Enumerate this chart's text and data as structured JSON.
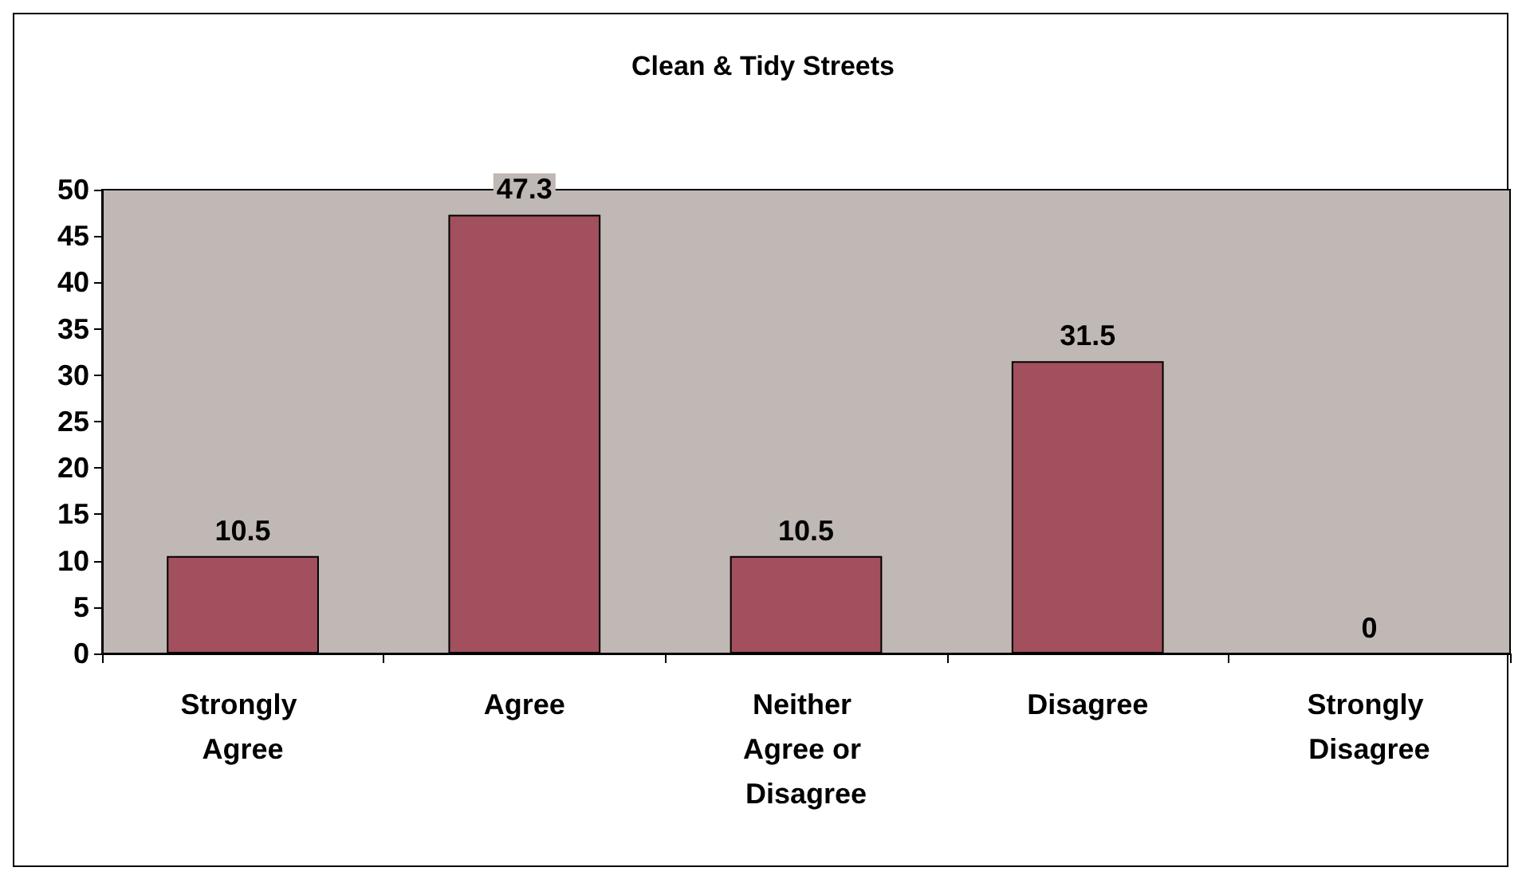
{
  "chart_data": {
    "type": "bar",
    "title": "Clean & Tidy Streets",
    "categories": [
      "Strongly Agree",
      "Agree",
      "Neither Agree or Disagree",
      "Disagree",
      "Strongly Disagree"
    ],
    "values": [
      10.5,
      47.3,
      10.5,
      31.5,
      0
    ],
    "color": "#a24f5e",
    "ylim": [
      0,
      50
    ],
    "yticks": [
      0,
      5,
      10,
      15,
      20,
      25,
      30,
      35,
      40,
      45,
      50
    ],
    "grid": false,
    "data_labels": true
  }
}
